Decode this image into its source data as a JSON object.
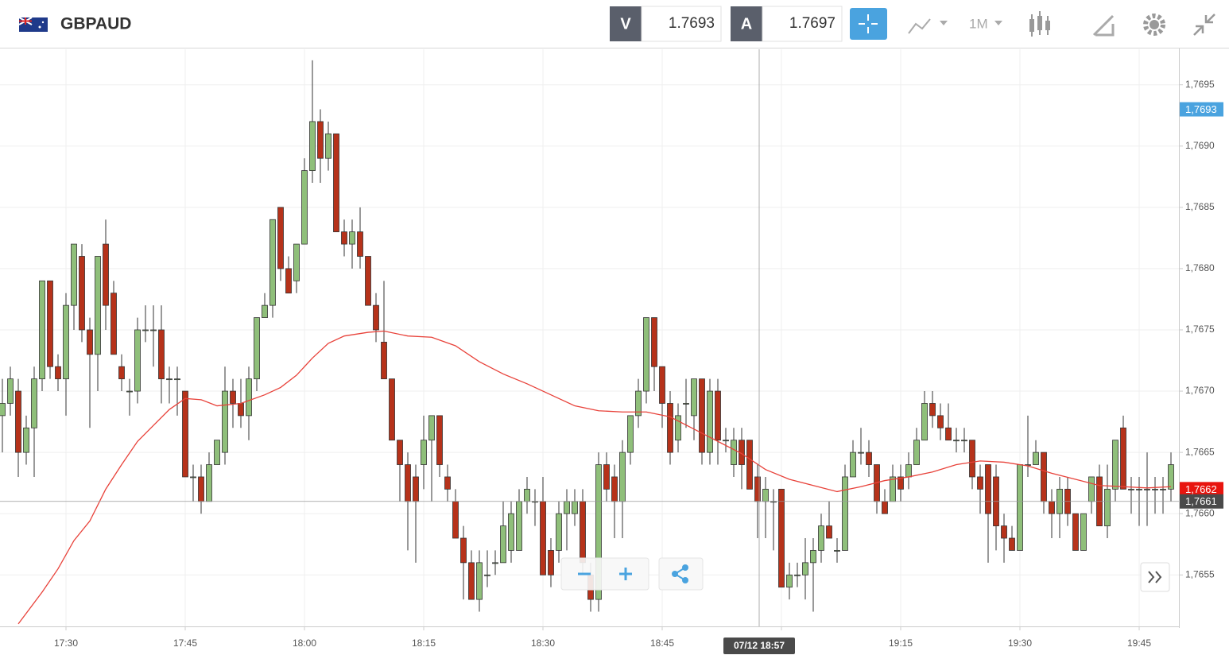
{
  "header": {
    "symbol": "GBPAUD",
    "bid_letter": "V",
    "bid": "1.7693",
    "ask_letter": "A",
    "ask": "1.7697",
    "timeframe": "1M"
  },
  "chart_data": {
    "type": "candlestick",
    "up_color": "#8fbf7a",
    "down_color": "#b6321a",
    "grid": true,
    "ylim": [
      1.76508,
      1.76979
    ],
    "xlim": [
      -0.3,
      148
    ],
    "yticks": [
      {
        "value": 1.7655,
        "label": "1,7655"
      },
      {
        "value": 1.766,
        "label": "1,7660"
      },
      {
        "value": 1.7665,
        "label": "1,7665"
      },
      {
        "value": 1.767,
        "label": "1,7670"
      },
      {
        "value": 1.7675,
        "label": "1,7675"
      },
      {
        "value": 1.768,
        "label": "1,7680"
      },
      {
        "value": 1.7685,
        "label": "1,7685"
      },
      {
        "value": 1.769,
        "label": "1,7690"
      },
      {
        "value": 1.7695,
        "label": "1,7695"
      }
    ],
    "xticks": [
      {
        "value": 8,
        "label": "17:30"
      },
      {
        "value": 23,
        "label": "17:45"
      },
      {
        "value": 38,
        "label": "18:00"
      },
      {
        "value": 53,
        "label": "18:15"
      },
      {
        "value": 68,
        "label": "18:30"
      },
      {
        "value": 83,
        "label": "18:45"
      },
      {
        "value": 98,
        "label": "19:00"
      },
      {
        "value": 113,
        "label": "19:15"
      },
      {
        "value": 128,
        "label": "19:30"
      },
      {
        "value": 143,
        "label": "19:45"
      }
    ],
    "open": [
      1.7668,
      1.7669,
      1.767,
      1.7665,
      1.7667,
      1.7671,
      1.7679,
      1.7672,
      1.7671,
      1.7677,
      1.7681,
      1.7675,
      1.7673,
      1.7682,
      1.7678,
      1.7672,
      1.767,
      1.767,
      1.7675,
      1.7675,
      1.7675,
      1.7671,
      1.7671,
      1.767,
      1.7663,
      1.7663,
      1.7661,
      1.7664,
      1.7665,
      1.767,
      1.7669,
      1.7668,
      1.7671,
      1.7676,
      1.7677,
      1.7685,
      1.768,
      1.7679,
      1.7682,
      1.7688,
      1.7692,
      1.7689,
      1.7691,
      1.7683,
      1.7682,
      1.7683,
      1.7681,
      1.7677,
      1.7674,
      1.7671,
      1.7666,
      1.7664,
      1.7663,
      1.7664,
      1.7666,
      1.7668,
      1.7663,
      1.7661,
      1.7658,
      1.7656,
      1.7653,
      1.7655,
      1.7656,
      1.7656,
      1.7657,
      1.7657,
      1.7661,
      1.7661,
      1.7661,
      1.7657,
      1.7657,
      1.766,
      1.766,
      1.7661,
      1.7655,
      1.7653,
      1.7664,
      1.7663,
      1.7661,
      1.7665,
      1.7668,
      1.767,
      1.7676,
      1.7672,
      1.7669,
      1.7666,
      1.7669,
      1.7668,
      1.7671,
      1.7665,
      1.767,
      1.7666,
      1.7664,
      1.7666,
      1.7666,
      1.7663,
      1.7661,
      1.7661,
      1.7662,
      1.7654,
      1.7655,
      1.7655,
      1.7656,
      1.7657,
      1.7659,
      1.7657,
      1.7657,
      1.7663,
      1.7665,
      1.7665,
      1.7664,
      1.7661,
      1.7661,
      1.7663,
      1.7663,
      1.7664,
      1.7666,
      1.7669,
      1.7668,
      1.7667,
      1.7666,
      1.7666,
      1.7666,
      1.7663,
      1.7664,
      1.7663,
      1.7659,
      1.7658,
      1.7657,
      1.7664,
      1.7664,
      1.7665,
      1.7661,
      1.766,
      1.7662,
      1.766,
      1.7657,
      1.7661,
      1.7663,
      1.7659,
      1.7662,
      1.7667,
      1.7662,
      1.7662,
      1.7662,
      1.7662,
      1.7662,
      1.7662
    ],
    "high": [
      1.7671,
      1.7672,
      1.7671,
      1.7668,
      1.7672,
      1.7679,
      1.7679,
      1.7673,
      1.7678,
      1.7682,
      1.7682,
      1.7676,
      1.7681,
      1.7684,
      1.7679,
      1.7673,
      1.7671,
      1.7676,
      1.7677,
      1.7677,
      1.7677,
      1.7672,
      1.7672,
      1.767,
      1.7664,
      1.7664,
      1.7665,
      1.7666,
      1.7672,
      1.7671,
      1.7671,
      1.7672,
      1.7676,
      1.7678,
      1.7684,
      1.7685,
      1.7681,
      1.7682,
      1.7689,
      1.7697,
      1.7693,
      1.7692,
      1.7691,
      1.7684,
      1.7684,
      1.7685,
      1.7681,
      1.7678,
      1.7679,
      1.7671,
      1.7666,
      1.7665,
      1.7664,
      1.7668,
      1.7668,
      1.7668,
      1.7664,
      1.7662,
      1.7659,
      1.7657,
      1.7657,
      1.7657,
      1.7657,
      1.7661,
      1.7661,
      1.7662,
      1.7663,
      1.7662,
      1.7663,
      1.7658,
      1.7661,
      1.7662,
      1.7662,
      1.7662,
      1.7656,
      1.7665,
      1.7665,
      1.7664,
      1.7666,
      1.7668,
      1.7671,
      1.7676,
      1.7676,
      1.7672,
      1.767,
      1.7669,
      1.7671,
      1.7671,
      1.7671,
      1.7671,
      1.7671,
      1.7667,
      1.7667,
      1.7667,
      1.7666,
      1.7664,
      1.7663,
      1.7662,
      1.7662,
      1.7656,
      1.7656,
      1.7658,
      1.7658,
      1.766,
      1.7661,
      1.7658,
      1.7664,
      1.7666,
      1.7667,
      1.7666,
      1.7664,
      1.7662,
      1.7664,
      1.7664,
      1.7665,
      1.7667,
      1.767,
      1.767,
      1.7669,
      1.7669,
      1.7667,
      1.7667,
      1.7666,
      1.7664,
      1.7664,
      1.7664,
      1.766,
      1.7659,
      1.7664,
      1.7668,
      1.7666,
      1.7665,
      1.7662,
      1.7663,
      1.7663,
      1.766,
      1.766,
      1.7663,
      1.7664,
      1.7664,
      1.7666,
      1.7668,
      1.7663,
      1.7663,
      1.7665,
      1.7663,
      1.7663,
      1.7665
    ],
    "low": [
      1.7665,
      1.7668,
      1.7663,
      1.7664,
      1.7663,
      1.767,
      1.7671,
      1.767,
      1.7668,
      1.7675,
      1.7674,
      1.7667,
      1.767,
      1.7675,
      1.7673,
      1.767,
      1.7668,
      1.7669,
      1.7674,
      1.7672,
      1.7669,
      1.7669,
      1.7668,
      1.7663,
      1.7661,
      1.766,
      1.7661,
      1.7664,
      1.7664,
      1.7667,
      1.7667,
      1.7666,
      1.767,
      1.7676,
      1.7676,
      1.7679,
      1.7678,
      1.7678,
      1.7682,
      1.7687,
      1.7687,
      1.7688,
      1.7683,
      1.7681,
      1.768,
      1.768,
      1.7677,
      1.7674,
      1.7671,
      1.7666,
      1.7661,
      1.7657,
      1.7656,
      1.7662,
      1.7661,
      1.7663,
      1.7661,
      1.7658,
      1.7653,
      1.7653,
      1.7652,
      1.7654,
      1.7655,
      1.7656,
      1.7656,
      1.7657,
      1.766,
      1.7659,
      1.7655,
      1.7654,
      1.7656,
      1.7657,
      1.7659,
      1.7655,
      1.7652,
      1.7652,
      1.7661,
      1.7658,
      1.7658,
      1.7664,
      1.7667,
      1.7669,
      1.767,
      1.7667,
      1.7664,
      1.7665,
      1.7667,
      1.7666,
      1.7664,
      1.7664,
      1.7664,
      1.7665,
      1.7663,
      1.7662,
      1.7662,
      1.7658,
      1.7658,
      1.7657,
      1.7654,
      1.7653,
      1.7654,
      1.7653,
      1.7652,
      1.7656,
      1.7658,
      1.7656,
      1.7657,
      1.7663,
      1.7664,
      1.7663,
      1.766,
      1.766,
      1.7661,
      1.7661,
      1.7662,
      1.7664,
      1.7666,
      1.7667,
      1.7666,
      1.7666,
      1.7665,
      1.7665,
      1.7662,
      1.766,
      1.7656,
      1.7657,
      1.7656,
      1.7657,
      1.7657,
      1.7663,
      1.7664,
      1.766,
      1.7658,
      1.7658,
      1.7659,
      1.7657,
      1.7657,
      1.766,
      1.7659,
      1.7658,
      1.7661,
      1.7662,
      1.766,
      1.7659,
      1.7659,
      1.766,
      1.766,
      1.7661
    ],
    "close": [
      1.7669,
      1.7671,
      1.7665,
      1.7667,
      1.7671,
      1.7679,
      1.7672,
      1.7671,
      1.7677,
      1.7682,
      1.7675,
      1.7673,
      1.7681,
      1.7677,
      1.7673,
      1.7671,
      1.767,
      1.7675,
      1.7675,
      1.7675,
      1.7671,
      1.7671,
      1.7671,
      1.7663,
      1.7663,
      1.7661,
      1.7664,
      1.7666,
      1.767,
      1.7669,
      1.7668,
      1.7671,
      1.7676,
      1.7677,
      1.7684,
      1.768,
      1.7678,
      1.7682,
      1.7688,
      1.7692,
      1.7689,
      1.7691,
      1.7683,
      1.7682,
      1.7683,
      1.7681,
      1.7677,
      1.7675,
      1.7671,
      1.7666,
      1.7664,
      1.7661,
      1.7661,
      1.7666,
      1.7668,
      1.7664,
      1.7662,
      1.7658,
      1.7656,
      1.7653,
      1.7656,
      1.7655,
      1.7656,
      1.7659,
      1.766,
      1.7661,
      1.7662,
      1.7661,
      1.7655,
      1.7655,
      1.766,
      1.7661,
      1.7661,
      1.7656,
      1.7653,
      1.7664,
      1.7662,
      1.7661,
      1.7665,
      1.7668,
      1.767,
      1.7676,
      1.7672,
      1.7669,
      1.7665,
      1.7668,
      1.7669,
      1.7671,
      1.7665,
      1.767,
      1.7666,
      1.7666,
      1.7666,
      1.7664,
      1.7662,
      1.7661,
      1.7662,
      1.7661,
      1.7654,
      1.7655,
      1.7655,
      1.7656,
      1.7657,
      1.7659,
      1.7658,
      1.7657,
      1.7663,
      1.7665,
      1.7665,
      1.7664,
      1.7661,
      1.766,
      1.7663,
      1.7662,
      1.7664,
      1.7666,
      1.7669,
      1.7668,
      1.7667,
      1.7666,
      1.7666,
      1.7666,
      1.7663,
      1.7662,
      1.766,
      1.7659,
      1.7658,
      1.7657,
      1.7664,
      1.7664,
      1.7665,
      1.7661,
      1.766,
      1.7662,
      1.766,
      1.7657,
      1.766,
      1.7663,
      1.7659,
      1.7662,
      1.7666,
      1.7662,
      1.7662,
      1.7662,
      1.7662,
      1.7662,
      1.7662,
      1.7664
    ],
    "moving_average": {
      "color": "#e8423a",
      "x": [
        2,
        5,
        7,
        9,
        11,
        13,
        15,
        17,
        19,
        21,
        23,
        25,
        27,
        30,
        33,
        35,
        37,
        39,
        41,
        43,
        46,
        48,
        51,
        54,
        57,
        60,
        63,
        66,
        69,
        72,
        75,
        78,
        81,
        84,
        87,
        90,
        93,
        96,
        99,
        102,
        105,
        108,
        111,
        114,
        117,
        120,
        123,
        126,
        129,
        132,
        135,
        138,
        141,
        144,
        147
      ],
      "values": [
        1.7651,
        1.76536,
        1.76555,
        1.76578,
        1.76594,
        1.7662,
        1.7664,
        1.76659,
        1.76672,
        1.76685,
        1.76694,
        1.76693,
        1.76688,
        1.7669,
        1.76697,
        1.76703,
        1.76713,
        1.76727,
        1.76739,
        1.76745,
        1.76748,
        1.76749,
        1.76745,
        1.76744,
        1.76737,
        1.76724,
        1.76714,
        1.76706,
        1.76697,
        1.76688,
        1.76684,
        1.76683,
        1.76683,
        1.76679,
        1.76669,
        1.76659,
        1.76649,
        1.76636,
        1.76628,
        1.76623,
        1.76618,
        1.76622,
        1.76627,
        1.7663,
        1.76634,
        1.7664,
        1.76643,
        1.76642,
        1.76639,
        1.76633,
        1.76628,
        1.76623,
        1.76622,
        1.76621,
        1.76622
      ]
    },
    "price_markers": [
      {
        "value": 1.7693,
        "label": "1,7693",
        "color": "#4aa3df"
      },
      {
        "value": 1.7662,
        "label": "1,7662",
        "color": "#e8150f"
      },
      {
        "value": 1.7661,
        "label": "1,7661",
        "color": "#4a4a4a"
      }
    ],
    "crosshair": {
      "x": 95.2,
      "label": "07/12 18:57"
    }
  }
}
